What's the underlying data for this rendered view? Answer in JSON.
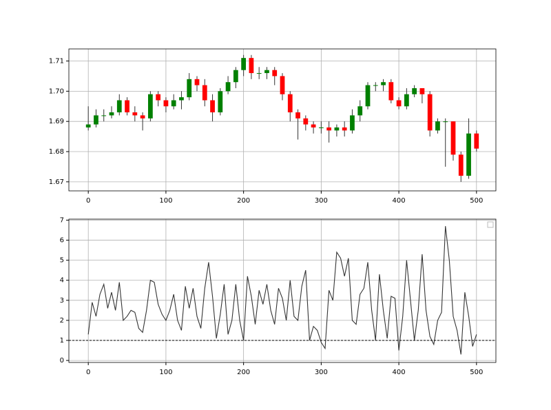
{
  "chart_data": [
    {
      "type": "candlestick",
      "x": [
        0,
        10,
        20,
        30,
        40,
        50,
        60,
        70,
        80,
        90,
        100,
        110,
        120,
        130,
        140,
        150,
        160,
        170,
        180,
        190,
        200,
        210,
        220,
        230,
        240,
        250,
        260,
        270,
        280,
        290,
        300,
        310,
        320,
        330,
        340,
        350,
        360,
        370,
        380,
        390,
        400,
        410,
        420,
        430,
        440,
        450,
        460,
        470,
        480,
        490,
        500
      ],
      "open": [
        1.688,
        1.689,
        1.692,
        1.692,
        1.693,
        1.697,
        1.693,
        1.692,
        1.691,
        1.699,
        1.697,
        1.695,
        1.697,
        1.698,
        1.704,
        1.702,
        1.697,
        1.693,
        1.7,
        1.703,
        1.707,
        1.711,
        1.706,
        1.706,
        1.707,
        1.705,
        1.699,
        1.693,
        1.691,
        1.689,
        1.688,
        1.688,
        1.687,
        1.688,
        1.687,
        1.692,
        1.695,
        1.702,
        1.702,
        1.703,
        1.697,
        1.695,
        1.699,
        1.701,
        1.699,
        1.687,
        1.69,
        1.69,
        1.679,
        1.672,
        1.686
      ],
      "high": [
        1.695,
        1.694,
        1.694,
        1.695,
        1.699,
        1.698,
        1.695,
        1.693,
        1.7,
        1.7,
        1.698,
        1.699,
        1.7,
        1.706,
        1.705,
        1.704,
        1.699,
        1.701,
        1.705,
        1.708,
        1.712,
        1.712,
        1.708,
        1.708,
        1.708,
        1.706,
        1.7,
        1.694,
        1.692,
        1.69,
        1.69,
        1.69,
        1.689,
        1.69,
        1.694,
        1.697,
        1.703,
        1.703,
        1.704,
        1.704,
        1.698,
        1.701,
        1.702,
        1.701,
        1.7,
        1.691,
        1.691,
        1.69,
        1.68,
        1.691,
        1.687
      ],
      "low": [
        1.687,
        1.688,
        1.69,
        1.691,
        1.692,
        1.692,
        1.69,
        1.687,
        1.69,
        1.695,
        1.693,
        1.694,
        1.694,
        1.697,
        1.7,
        1.695,
        1.69,
        1.692,
        1.699,
        1.701,
        1.705,
        1.704,
        1.704,
        1.704,
        1.702,
        1.697,
        1.69,
        1.684,
        1.687,
        1.686,
        1.686,
        1.683,
        1.685,
        1.685,
        1.686,
        1.69,
        1.694,
        1.7,
        1.7,
        1.696,
        1.694,
        1.694,
        1.698,
        1.696,
        1.685,
        1.686,
        1.675,
        1.677,
        1.67,
        1.671,
        1.68
      ],
      "close": [
        1.689,
        1.692,
        1.692,
        1.693,
        1.697,
        1.693,
        1.692,
        1.691,
        1.699,
        1.697,
        1.695,
        1.697,
        1.698,
        1.704,
        1.702,
        1.697,
        1.693,
        1.7,
        1.703,
        1.707,
        1.711,
        1.706,
        1.706,
        1.707,
        1.705,
        1.699,
        1.693,
        1.691,
        1.689,
        1.688,
        1.688,
        1.687,
        1.688,
        1.687,
        1.692,
        1.695,
        1.702,
        1.702,
        1.703,
        1.697,
        1.695,
        1.699,
        1.701,
        1.699,
        1.687,
        1.69,
        1.69,
        1.679,
        1.672,
        1.686,
        1.681
      ],
      "up_color": "green",
      "down_color": "red",
      "wick_color": "#333333",
      "xlim": [
        -25,
        525
      ],
      "xticks": [
        0,
        100,
        200,
        300,
        400,
        500
      ],
      "ylim": [
        1.667,
        1.714
      ],
      "yticks": [
        1.67,
        1.68,
        1.69,
        {
          "value": 1.7,
          "label": "1.70"
        },
        1.71
      ],
      "grid": true
    },
    {
      "type": "line",
      "x": [
        0,
        5,
        10,
        15,
        20,
        25,
        30,
        35,
        40,
        45,
        50,
        55,
        60,
        65,
        70,
        75,
        80,
        85,
        90,
        95,
        100,
        105,
        110,
        115,
        120,
        125,
        130,
        135,
        140,
        145,
        150,
        155,
        160,
        165,
        170,
        175,
        180,
        185,
        190,
        195,
        200,
        205,
        210,
        215,
        220,
        225,
        230,
        235,
        240,
        245,
        250,
        255,
        260,
        265,
        270,
        275,
        280,
        285,
        290,
        295,
        300,
        305,
        310,
        315,
        320,
        325,
        330,
        335,
        340,
        345,
        350,
        355,
        360,
        365,
        370,
        375,
        380,
        385,
        390,
        395,
        400,
        405,
        410,
        415,
        420,
        425,
        430,
        435,
        440,
        445,
        450,
        455,
        460,
        465,
        470,
        475,
        480,
        485,
        490,
        495,
        500
      ],
      "values": [
        1.3,
        2.9,
        2.2,
        3.3,
        3.8,
        2.6,
        3.4,
        2.5,
        3.9,
        2.0,
        2.2,
        2.5,
        2.4,
        1.6,
        1.4,
        2.5,
        4.0,
        3.9,
        2.8,
        2.3,
        2.0,
        2.5,
        3.3,
        2.0,
        1.5,
        3.7,
        2.6,
        3.6,
        2.2,
        1.6,
        3.6,
        4.9,
        3.2,
        1.1,
        2.3,
        3.8,
        1.3,
        2.0,
        3.8,
        2.0,
        1.0,
        4.2,
        3.2,
        1.8,
        3.5,
        2.8,
        3.8,
        2.5,
        1.8,
        3.6,
        3.1,
        2.0,
        4.0,
        2.2,
        2.0,
        3.7,
        4.5,
        1.0,
        1.7,
        1.5,
        0.9,
        0.6,
        3.5,
        3.0,
        5.4,
        5.1,
        4.2,
        5.1,
        2.0,
        1.8,
        3.3,
        3.6,
        4.9,
        2.5,
        1.0,
        4.3,
        2.5,
        1.1,
        3.2,
        3.1,
        0.5,
        2.2,
        5.0,
        3.0,
        1.0,
        2.5,
        5.3,
        2.5,
        1.2,
        0.8,
        2.0,
        2.4,
        6.7,
        5.0,
        2.2,
        1.5,
        0.3,
        3.4,
        2.2,
        0.7,
        1.3
      ],
      "color": "#333333",
      "hline": 1,
      "xlim": [
        -25,
        525
      ],
      "xticks": [
        0,
        100,
        200,
        300,
        400,
        500
      ],
      "ylim": [
        -0.1,
        7.05
      ],
      "yticks": [
        0,
        1,
        2,
        3,
        4,
        5,
        6,
        7
      ],
      "grid": true
    }
  ]
}
